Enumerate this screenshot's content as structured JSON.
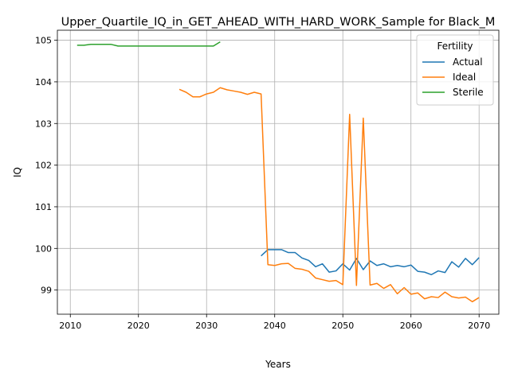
{
  "chart_data": {
    "type": "line",
    "title": "Upper_Quartile_IQ_in_GET_AHEAD_WITH_HARD_WORK_Sample for Black_M",
    "xlabel": "Years",
    "ylabel": "IQ",
    "xlim": [
      2008.1,
      2072.9
    ],
    "ylim": [
      98.42,
      105.24
    ],
    "xticks": [
      2010,
      2020,
      2030,
      2040,
      2050,
      2060,
      2070
    ],
    "yticks": [
      99,
      100,
      101,
      102,
      103,
      104,
      105
    ],
    "grid": true,
    "legend": {
      "title": "Fertility",
      "placement": "top-right"
    },
    "series": [
      {
        "name": "Actual",
        "color": "#1f77b4",
        "points": [
          [
            2038,
            99.82
          ],
          [
            2039,
            99.97
          ],
          [
            2040,
            99.97
          ],
          [
            2041,
            99.97
          ],
          [
            2042,
            99.9
          ],
          [
            2043,
            99.9
          ],
          [
            2044,
            99.77
          ],
          [
            2045,
            99.71
          ],
          [
            2046,
            99.56
          ],
          [
            2047,
            99.63
          ],
          [
            2048,
            99.43
          ],
          [
            2049,
            99.46
          ],
          [
            2050,
            99.63
          ],
          [
            2051,
            99.48
          ],
          [
            2052,
            99.76
          ],
          [
            2053,
            99.49
          ],
          [
            2054,
            99.7
          ],
          [
            2055,
            99.59
          ],
          [
            2056,
            99.63
          ],
          [
            2057,
            99.56
          ],
          [
            2058,
            99.59
          ],
          [
            2059,
            99.56
          ],
          [
            2060,
            99.6
          ],
          [
            2061,
            99.45
          ],
          [
            2062,
            99.43
          ],
          [
            2063,
            99.37
          ],
          [
            2064,
            99.46
          ],
          [
            2065,
            99.42
          ],
          [
            2066,
            99.68
          ],
          [
            2067,
            99.55
          ],
          [
            2068,
            99.76
          ],
          [
            2069,
            99.61
          ],
          [
            2070,
            99.78
          ]
        ]
      },
      {
        "name": "Ideal",
        "color": "#ff7f0e",
        "points": [
          [
            2026,
            103.82
          ],
          [
            2027,
            103.75
          ],
          [
            2028,
            103.64
          ],
          [
            2029,
            103.64
          ],
          [
            2030,
            103.71
          ],
          [
            2031,
            103.75
          ],
          [
            2032,
            103.86
          ],
          [
            2033,
            103.81
          ],
          [
            2034,
            103.78
          ],
          [
            2035,
            103.75
          ],
          [
            2036,
            103.7
          ],
          [
            2037,
            103.75
          ],
          [
            2038,
            103.71
          ],
          [
            2039,
            99.61
          ],
          [
            2040,
            99.59
          ],
          [
            2041,
            99.63
          ],
          [
            2042,
            99.64
          ],
          [
            2043,
            99.52
          ],
          [
            2044,
            99.5
          ],
          [
            2045,
            99.45
          ],
          [
            2046,
            99.29
          ],
          [
            2047,
            99.25
          ],
          [
            2048,
            99.21
          ],
          [
            2049,
            99.23
          ],
          [
            2050,
            99.13
          ],
          [
            2051,
            103.22
          ],
          [
            2052,
            99.11
          ],
          [
            2053,
            103.13
          ],
          [
            2054,
            99.12
          ],
          [
            2055,
            99.16
          ],
          [
            2056,
            99.04
          ],
          [
            2057,
            99.13
          ],
          [
            2058,
            98.91
          ],
          [
            2059,
            99.06
          ],
          [
            2060,
            98.9
          ],
          [
            2061,
            98.93
          ],
          [
            2062,
            98.79
          ],
          [
            2063,
            98.84
          ],
          [
            2064,
            98.82
          ],
          [
            2065,
            98.95
          ],
          [
            2066,
            98.84
          ],
          [
            2067,
            98.81
          ],
          [
            2068,
            98.83
          ],
          [
            2069,
            98.72
          ],
          [
            2070,
            98.82
          ]
        ]
      },
      {
        "name": "Sterile",
        "color": "#2ca02c",
        "points": [
          [
            2011,
            104.88
          ],
          [
            2012,
            104.88
          ],
          [
            2013,
            104.9
          ],
          [
            2014,
            104.9
          ],
          [
            2015,
            104.9
          ],
          [
            2016,
            104.9
          ],
          [
            2017,
            104.86
          ],
          [
            2018,
            104.86
          ],
          [
            2019,
            104.86
          ],
          [
            2020,
            104.86
          ],
          [
            2021,
            104.86
          ],
          [
            2022,
            104.86
          ],
          [
            2023,
            104.86
          ],
          [
            2024,
            104.86
          ],
          [
            2025,
            104.86
          ],
          [
            2026,
            104.86
          ],
          [
            2027,
            104.86
          ],
          [
            2028,
            104.86
          ],
          [
            2029,
            104.86
          ],
          [
            2030,
            104.86
          ],
          [
            2031,
            104.86
          ],
          [
            2032,
            104.96
          ]
        ]
      }
    ]
  }
}
